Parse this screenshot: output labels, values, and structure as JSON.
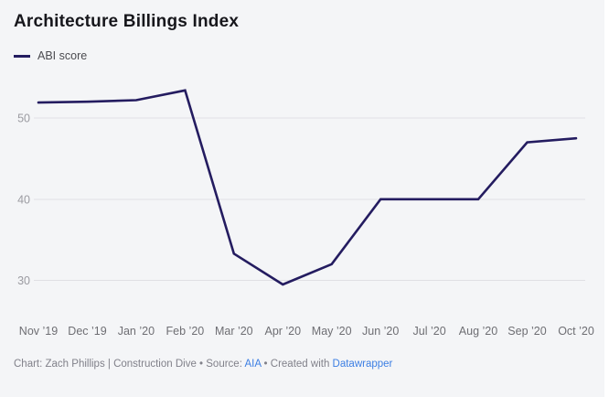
{
  "header": {
    "title": "Architecture Billings Index"
  },
  "legend": {
    "items": [
      {
        "label": "ABI score",
        "color": "#241c60"
      }
    ]
  },
  "chart_data": {
    "type": "line",
    "title": "Architecture Billings Index",
    "categories": [
      "Nov ’19",
      "Dec ’19",
      "Jan ’20",
      "Feb ’20",
      "Mar ’20",
      "Apr ’20",
      "May ’20",
      "Jun ’20",
      "Jul ’20",
      "Aug ’20",
      "Sep ’20",
      "Oct ’20"
    ],
    "series": [
      {
        "name": "ABI score",
        "values": [
          51.9,
          52.0,
          52.2,
          53.4,
          33.3,
          29.5,
          32.0,
          40.0,
          40.0,
          40.0,
          47.0,
          47.5
        ]
      }
    ],
    "xlabel": "",
    "ylabel": "",
    "yticks": [
      30,
      40,
      50
    ],
    "ylim": [
      27.5,
      55
    ],
    "grid": "horizontal",
    "legend_position": "top-left"
  },
  "footer": {
    "prefix": "Chart: Zach Phillips | Construction Dive • Source: ",
    "source_link": "AIA",
    "middle": " • Created with ",
    "tool_link": "Datawrapper"
  },
  "colors": {
    "background": "#f4f5f7",
    "line": "#241c60",
    "link": "#3d7fe3",
    "gridline": "#dfdfe4"
  }
}
